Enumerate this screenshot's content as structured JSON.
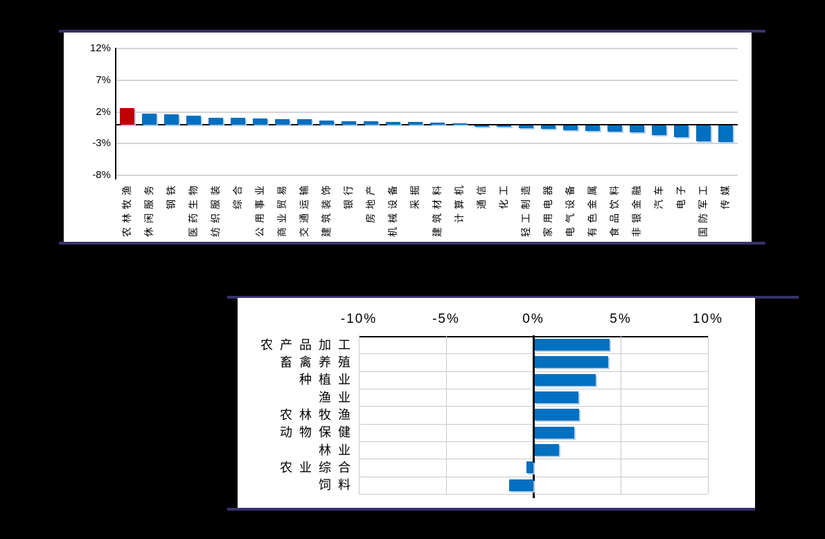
{
  "page": {
    "background": "#000000",
    "panel_background": "#ffffff",
    "panel_border_color": "#37336a"
  },
  "colors": {
    "bar_blue": "#0070C0",
    "bar_red": "#C00000",
    "gridline_gray": "#d4d4d4",
    "axis_black": "#000000",
    "bar_shadow_blue": "#aecdea"
  },
  "chart_data": [
    {
      "type": "bar",
      "title": "",
      "unit": "percent",
      "grid": "horizontal",
      "legend": null,
      "categories": [
        "农林牧渔",
        "休闲服务",
        "钢铁",
        "医药生物",
        "纺织服装",
        "综合",
        "公用事业",
        "商业贸易",
        "交通运输",
        "建筑装饰",
        "银行",
        "房地产",
        "机械设备",
        "采掘",
        "建筑材料",
        "计算机",
        "通信",
        "化工",
        "轻工制造",
        "家用电器",
        "电气设备",
        "有色金属",
        "食品饮料",
        "非银金融",
        "汽车",
        "电子",
        "国防军工",
        "传媒"
      ],
      "values": [
        2.6,
        1.8,
        1.6,
        1.4,
        1.1,
        1.05,
        1.0,
        0.9,
        0.85,
        0.7,
        0.6,
        0.6,
        0.45,
        0.45,
        0.3,
        0.25,
        -0.2,
        -0.25,
        -0.4,
        -0.6,
        -0.8,
        -0.9,
        -1.0,
        -1.1,
        -1.5,
        -1.9,
        -2.5,
        -2.6
      ],
      "highlight_index": 0,
      "highlight_color": "#C00000",
      "bar_color": "#0070C0",
      "yticks": [
        {
          "label": "12%",
          "value": 12
        },
        {
          "label": "7%",
          "value": 7
        },
        {
          "label": "2%",
          "value": 2
        },
        {
          "label": "-3%",
          "value": -3
        },
        {
          "label": "-8%",
          "value": -8
        }
      ],
      "ylim": [
        -8,
        12
      ],
      "label_rotation": -90
    },
    {
      "type": "bar",
      "orientation": "horizontal",
      "title": "",
      "unit": "percent",
      "grid": "vertical",
      "legend": null,
      "categories": [
        "农产品加工",
        "畜禽养殖",
        "种植业",
        "渔业",
        "农林牧渔",
        "动物保健",
        "林业",
        "农业综合",
        "饲料"
      ],
      "values": [
        4.3,
        4.2,
        3.5,
        2.5,
        2.55,
        2.25,
        1.4,
        -0.4,
        -1.4
      ],
      "bar_color": "#0070C0",
      "xticks": [
        {
          "label": "-10%",
          "value": -10
        },
        {
          "label": "-5%",
          "value": -5
        },
        {
          "label": "0%",
          "value": 0
        },
        {
          "label": "5%",
          "value": 5
        },
        {
          "label": "10%",
          "value": 10
        }
      ],
      "xlim": [
        -10,
        10
      ]
    }
  ]
}
